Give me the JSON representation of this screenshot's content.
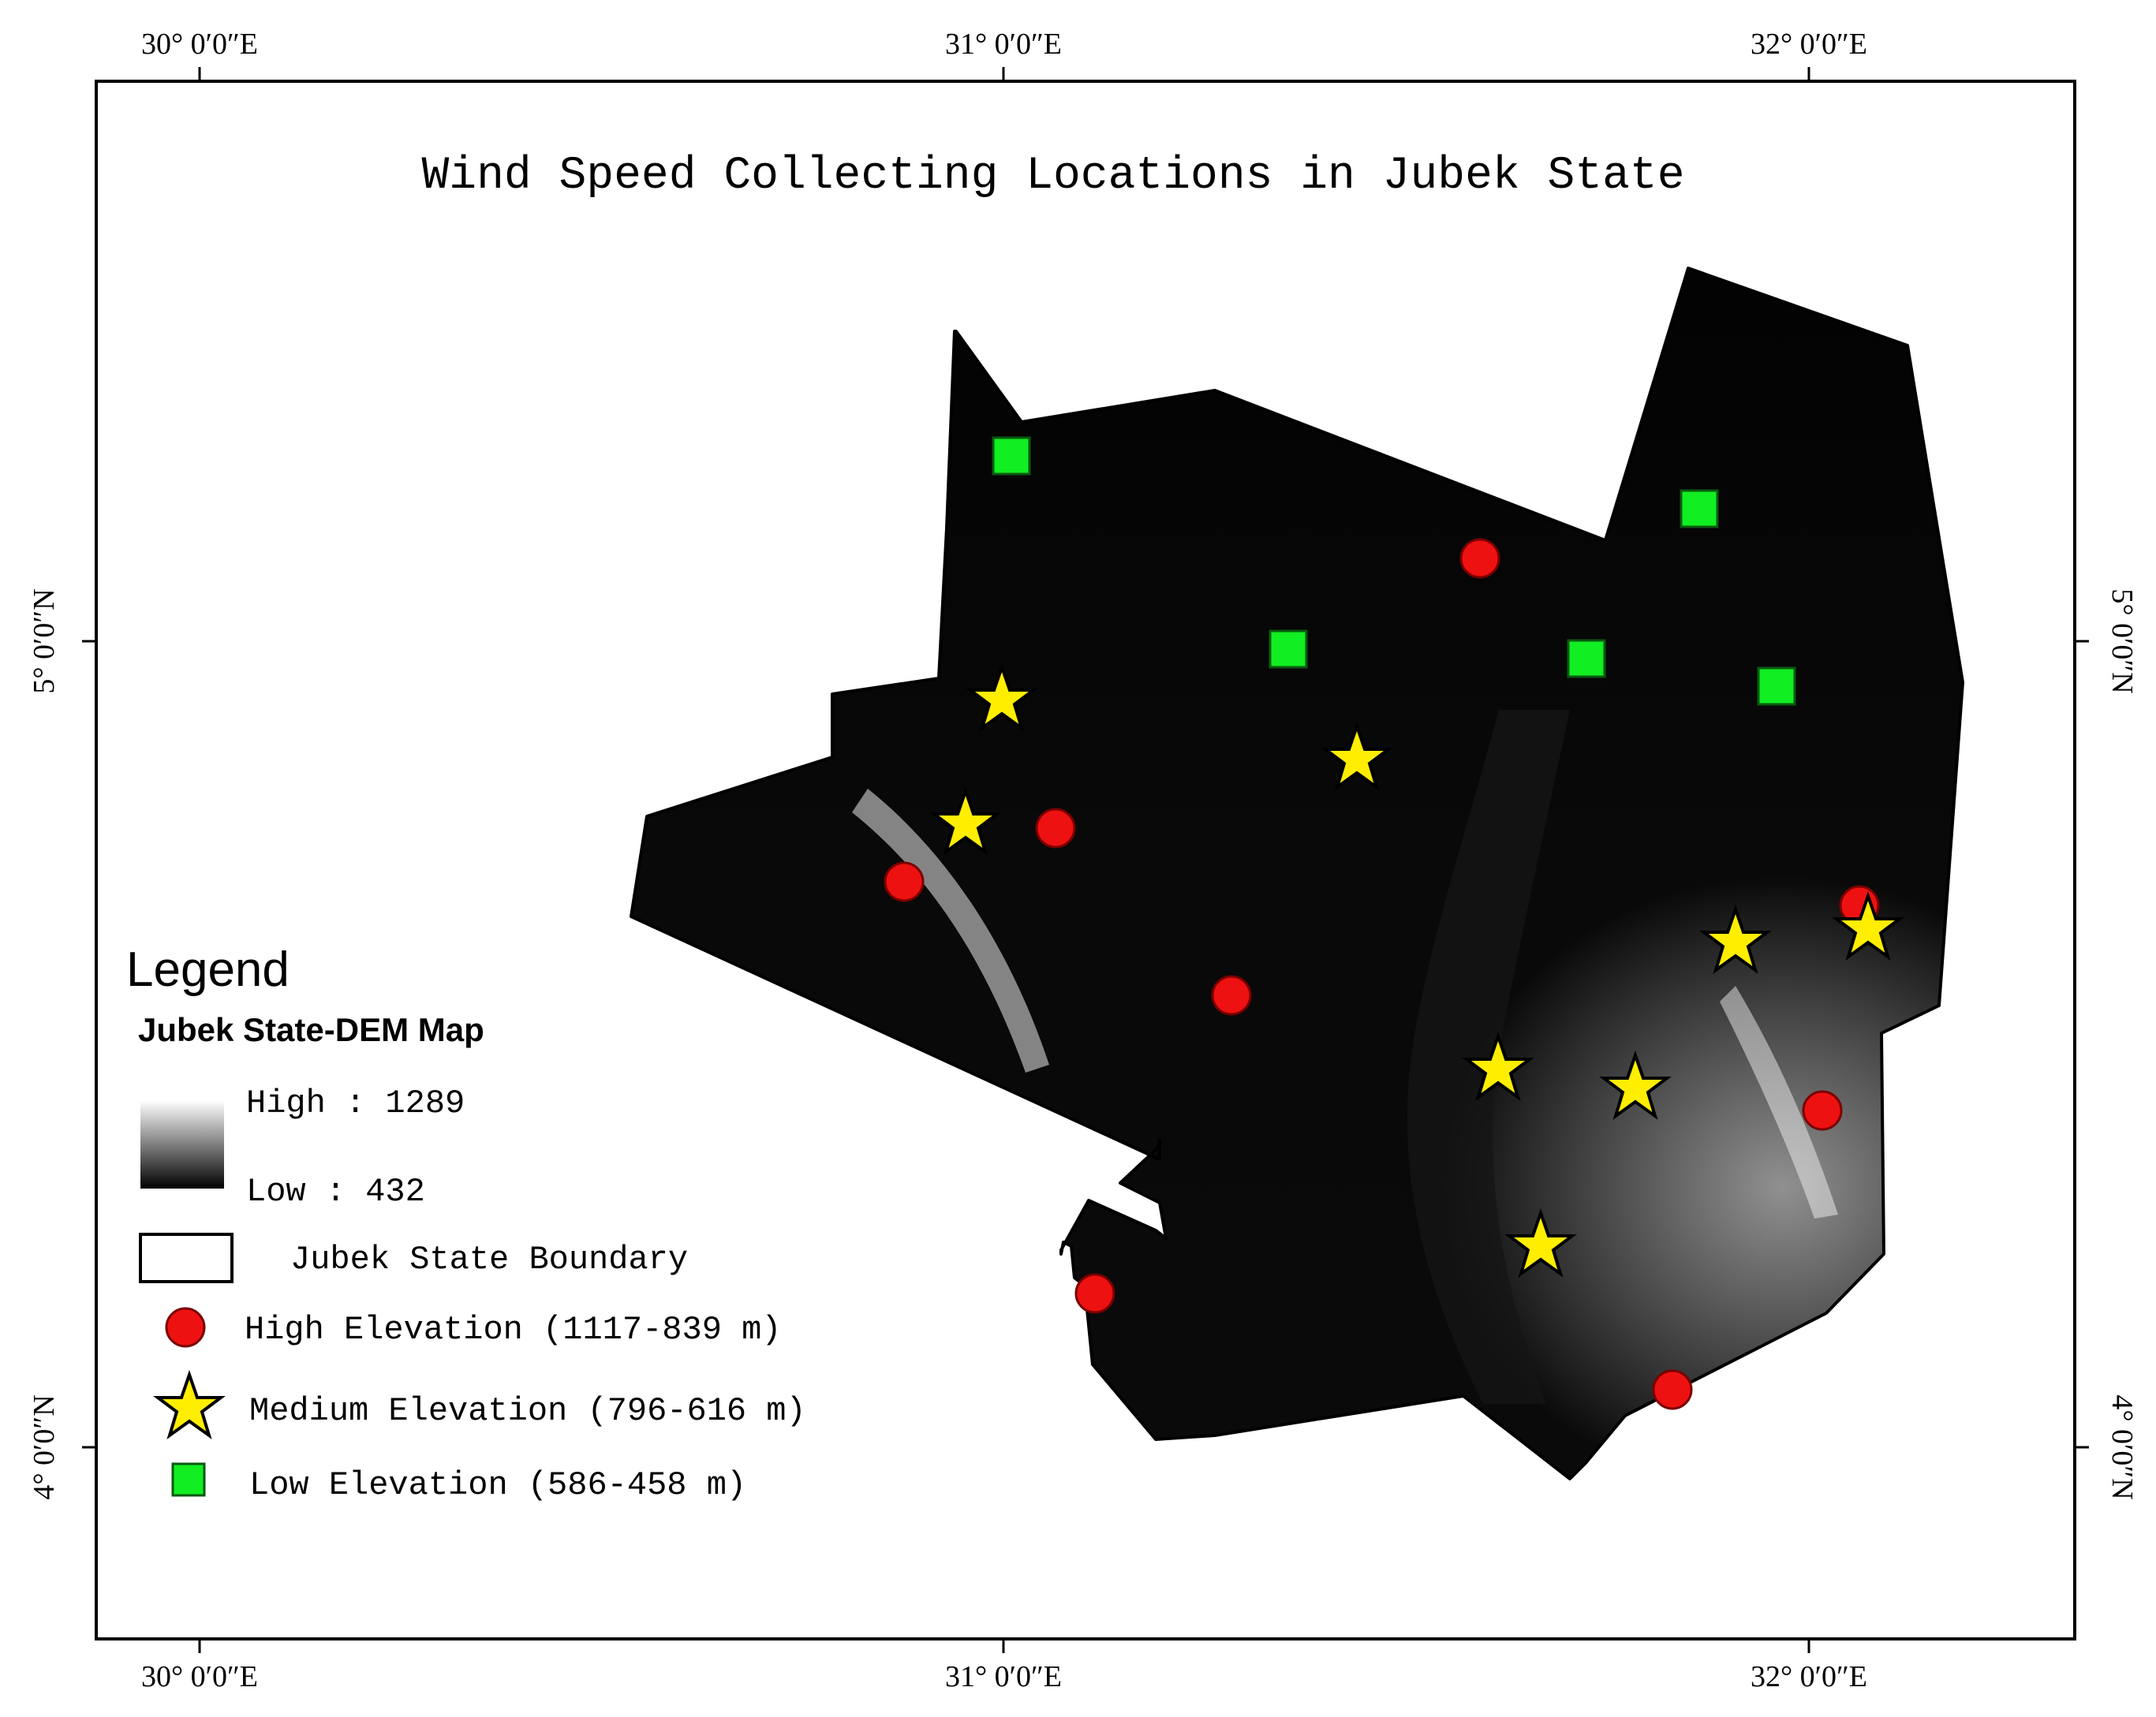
{
  "map": {
    "title": "Wind Speed Collecting Locations in Jubek State",
    "longitude_ticks": [
      "30° 0′0″E",
      "31° 0′0″E",
      "32° 0′0″E"
    ],
    "latitude_ticks": [
      "5° 0′0″N",
      "4° 0′0″N"
    ]
  },
  "legend": {
    "heading": "Legend",
    "dem_title": "Jubek State-DEM Map",
    "dem_high": "High : 1289",
    "dem_low": "Low : 432",
    "boundary": "Jubek State Boundary",
    "high_elevation": "High Elevation (1117-839 m)",
    "medium_elevation": "Medium Elevation (796-616 m)",
    "low_elevation": "Low Elevation (586-458 m)"
  },
  "colors": {
    "high_marker": "#ee1111",
    "medium_marker": "#ffee00",
    "low_marker": "#11ee22",
    "dem_high": "#ffffff",
    "dem_low": "#000000",
    "boundary": "#000000"
  },
  "icons": {
    "high": "red-circle-icon",
    "medium": "yellow-star-icon",
    "low": "green-square-icon"
  }
}
